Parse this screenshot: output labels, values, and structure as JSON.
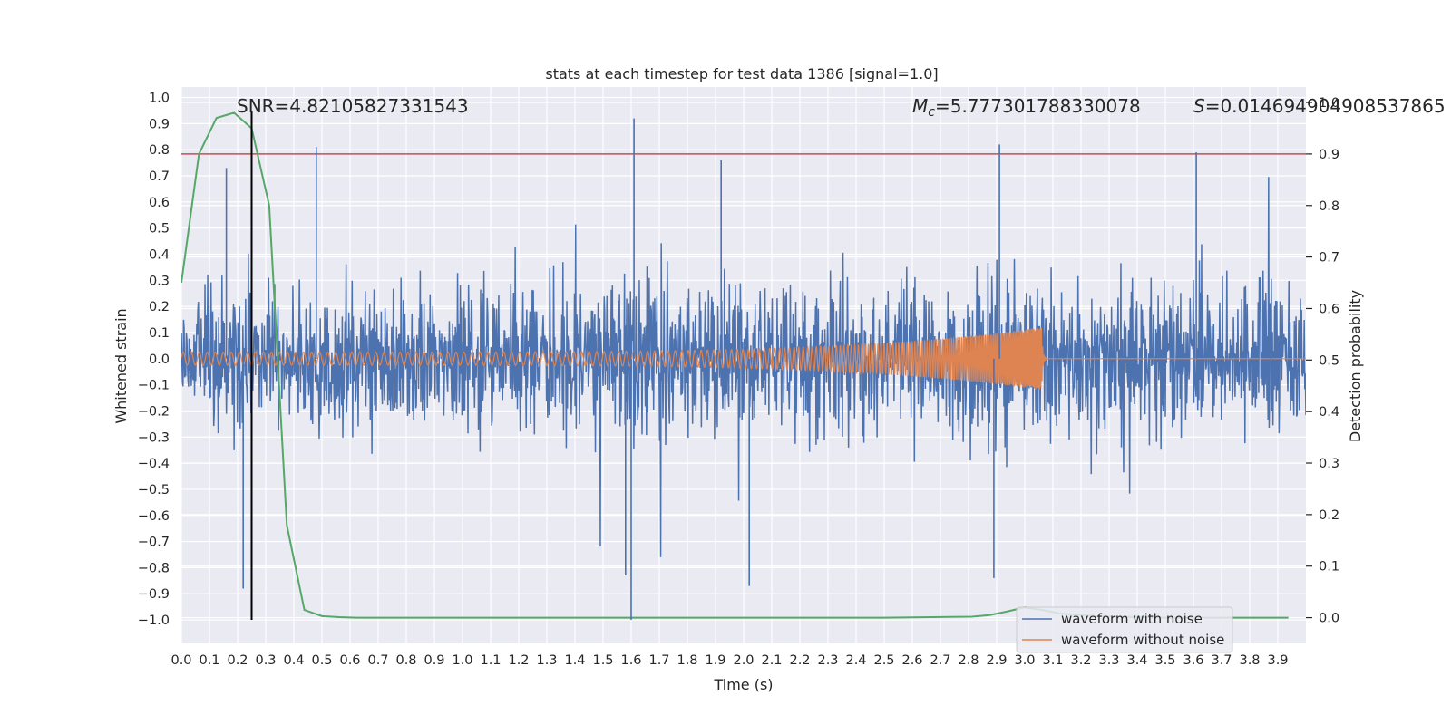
{
  "chart_data": {
    "type": "line",
    "title": "stats at each timestep for test data 1386 [signal=1.0]",
    "xlabel": "Time (s)",
    "ylabel": "Whitened strain",
    "ylabel_right": "Detection probability",
    "xlim": [
      0.0,
      4.0
    ],
    "ylim": [
      -1.09,
      1.04
    ],
    "ylim_right": [
      -0.05,
      1.03
    ],
    "x_ticks": [
      "0.0",
      "0.1",
      "0.2",
      "0.3",
      "0.4",
      "0.5",
      "0.6",
      "0.7",
      "0.8",
      "0.9",
      "1.0",
      "1.1",
      "1.2",
      "1.3",
      "1.4",
      "1.5",
      "1.6",
      "1.7",
      "1.8",
      "1.9",
      "2.0",
      "2.1",
      "2.2",
      "2.3",
      "2.4",
      "2.5",
      "2.6",
      "2.7",
      "2.8",
      "2.9",
      "3.0",
      "3.1",
      "3.2",
      "3.3",
      "3.4",
      "3.5",
      "3.6",
      "3.7",
      "3.8",
      "3.9"
    ],
    "y_ticks": [
      "1.0",
      "0.9",
      "0.8",
      "0.7",
      "0.6",
      "0.5",
      "0.4",
      "0.3",
      "0.2",
      "0.1",
      "0.0",
      "−0.1",
      "−0.2",
      "−0.3",
      "−0.4",
      "−0.5",
      "−0.6",
      "−0.7",
      "−0.8",
      "−0.9",
      "−1.0"
    ],
    "y_ticks_right": [
      "1.0",
      "0.9",
      "0.8",
      "0.7",
      "0.6",
      "0.5",
      "0.4",
      "0.3",
      "0.2",
      "0.1",
      "0.0"
    ],
    "annotations": {
      "snr": "SNR=4.82105827331543",
      "mc_symbol": "M",
      "mc_sub": "c",
      "mc_value": "=5.777301788330078",
      "s_symbol": "S",
      "s_value": "=0.014694904908537865"
    },
    "threshold_right": 0.9,
    "threshold_color": "#c44e52",
    "marker_time": 0.25,
    "series": [
      {
        "name": "waveform with noise",
        "color": "#4c72b0",
        "kind": "noise",
        "sample_rate_hz": 2048,
        "typical_amplitude": 0.25,
        "spikes": [
          {
            "t": 0.48,
            "y": 0.81
          },
          {
            "t": 1.61,
            "y": 0.92
          },
          {
            "t": 1.6,
            "y": -1.0
          },
          {
            "t": 2.91,
            "y": 0.82
          },
          {
            "t": 3.61,
            "y": 0.79
          },
          {
            "t": 1.58,
            "y": -0.83
          },
          {
            "t": 2.02,
            "y": -0.87
          },
          {
            "t": 0.22,
            "y": -0.88
          },
          {
            "t": 2.89,
            "y": -0.84
          },
          {
            "t": 0.16,
            "y": 0.73
          },
          {
            "t": 1.92,
            "y": 0.76
          }
        ]
      },
      {
        "name": "waveform without noise",
        "color": "#dd8452",
        "kind": "chirp",
        "merger_time": 3.06,
        "start_amplitude": 0.025,
        "peak_amplitude": 0.12,
        "start_frequency_hz": 35,
        "end_frequency_hz": 230
      },
      {
        "name": "detection probability",
        "color": "#55a868",
        "axis": "right",
        "x": [
          0.0,
          0.0625,
          0.125,
          0.1875,
          0.25,
          0.3125,
          0.375,
          0.4375,
          0.5,
          0.5625,
          0.625,
          1.0,
          2.0,
          2.5,
          2.8125,
          2.875,
          2.9375,
          3.0,
          3.0625,
          3.125,
          3.25,
          3.5,
          3.9375
        ],
        "y": [
          0.65,
          0.9,
          0.97,
          0.98,
          0.95,
          0.8,
          0.18,
          0.015,
          0.003,
          0.001,
          0.0,
          0.0,
          0.0,
          0.0,
          0.002,
          0.005,
          0.012,
          0.02,
          0.015,
          0.008,
          0.003,
          0.0,
          0.0
        ]
      }
    ],
    "legend": {
      "position": "lower-right",
      "entries": [
        {
          "label": "waveform with noise",
          "color": "#4c72b0"
        },
        {
          "label": "waveform without noise",
          "color": "#dd8452"
        }
      ]
    }
  }
}
